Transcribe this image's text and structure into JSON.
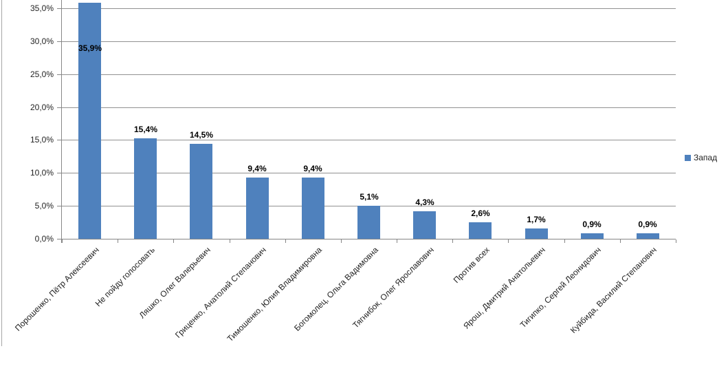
{
  "chart_data": {
    "type": "bar",
    "title": "",
    "categories": [
      "Порошенко, Пётр Алексеевич",
      "Не пойду голосовать",
      "Ляшко, Олег Валерьевич",
      "Гриценко, Анатолий Степанович",
      "Тимошенко, Юлия Владимировна",
      "Богомолец, Ольга Вадимовна",
      "Тягнибок, Олег Ярославович",
      "Против всех",
      "Ярош, Дмитрий Анатольевич",
      "Тигипко, Сергей Леонидович",
      "Куйбида, Василий Степанович"
    ],
    "series": [
      {
        "name": "Запад",
        "values": [
          35.9,
          15.4,
          14.5,
          9.4,
          9.4,
          5.1,
          4.3,
          2.6,
          1.7,
          0.9,
          0.9
        ]
      }
    ],
    "value_labels": [
      "35,9%",
      "15,4%",
      "14,5%",
      "9,4%",
      "9,4%",
      "5,1%",
      "4,3%",
      "2,6%",
      "1,7%",
      "0,9%",
      "0,9%"
    ],
    "yticks": {
      "values": [
        0,
        5,
        10,
        15,
        20,
        25,
        30,
        35
      ],
      "labels": [
        "0,0%",
        "5,0%",
        "10,0%",
        "15,0%",
        "20,0%",
        "25,0%",
        "30,0%",
        "35,0%"
      ]
    },
    "ylim": [
      0,
      36.4
    ],
    "grid": true,
    "legend_position": "right",
    "legend": {
      "label": "Запад"
    }
  },
  "colors": {
    "bar": "#4f81bd",
    "gridline": "#919191",
    "axis": "#868686",
    "text": "#1f1f1f",
    "chart_border": "#a6a6a6"
  }
}
